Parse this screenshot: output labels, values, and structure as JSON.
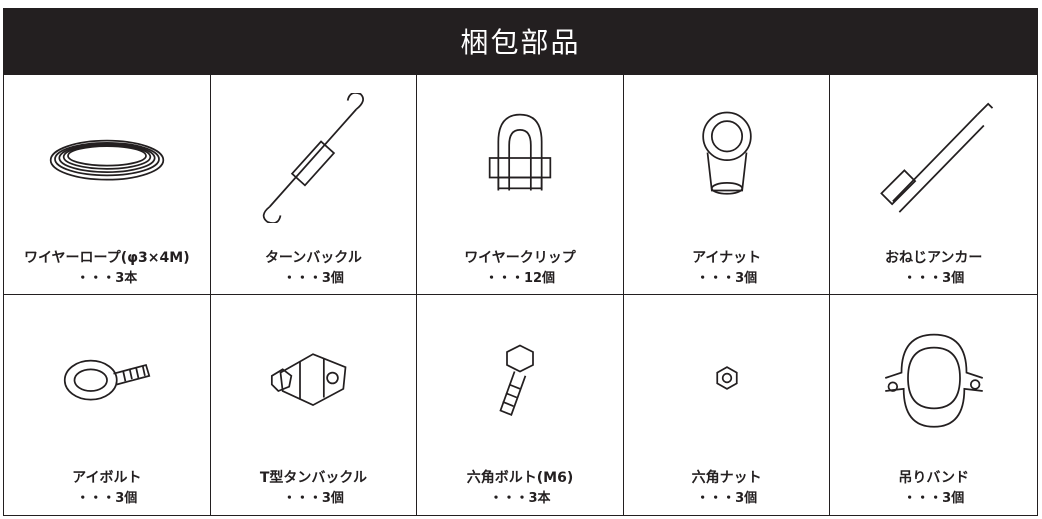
{
  "header": {
    "title": "梱包部品"
  },
  "items": [
    {
      "name": "ワイヤーロープ(φ3×4M)",
      "quantity": "・・・3本"
    },
    {
      "name": "ターンバックル",
      "quantity": "・・・3個"
    },
    {
      "name": "ワイヤークリップ",
      "quantity": "・・・12個"
    },
    {
      "name": "アイナット",
      "quantity": "・・・3個"
    },
    {
      "name": "おねじアンカー",
      "quantity": "・・・3個"
    },
    {
      "name": "アイボルト",
      "quantity": "・・・3個"
    },
    {
      "name": "T型タンバックル",
      "quantity": "・・・3個"
    },
    {
      "name": "六角ボルト(M6)",
      "quantity": "・・・3本"
    },
    {
      "name": "六角ナット",
      "quantity": "・・・3個"
    },
    {
      "name": "吊りバンド",
      "quantity": "・・・3個"
    }
  ]
}
